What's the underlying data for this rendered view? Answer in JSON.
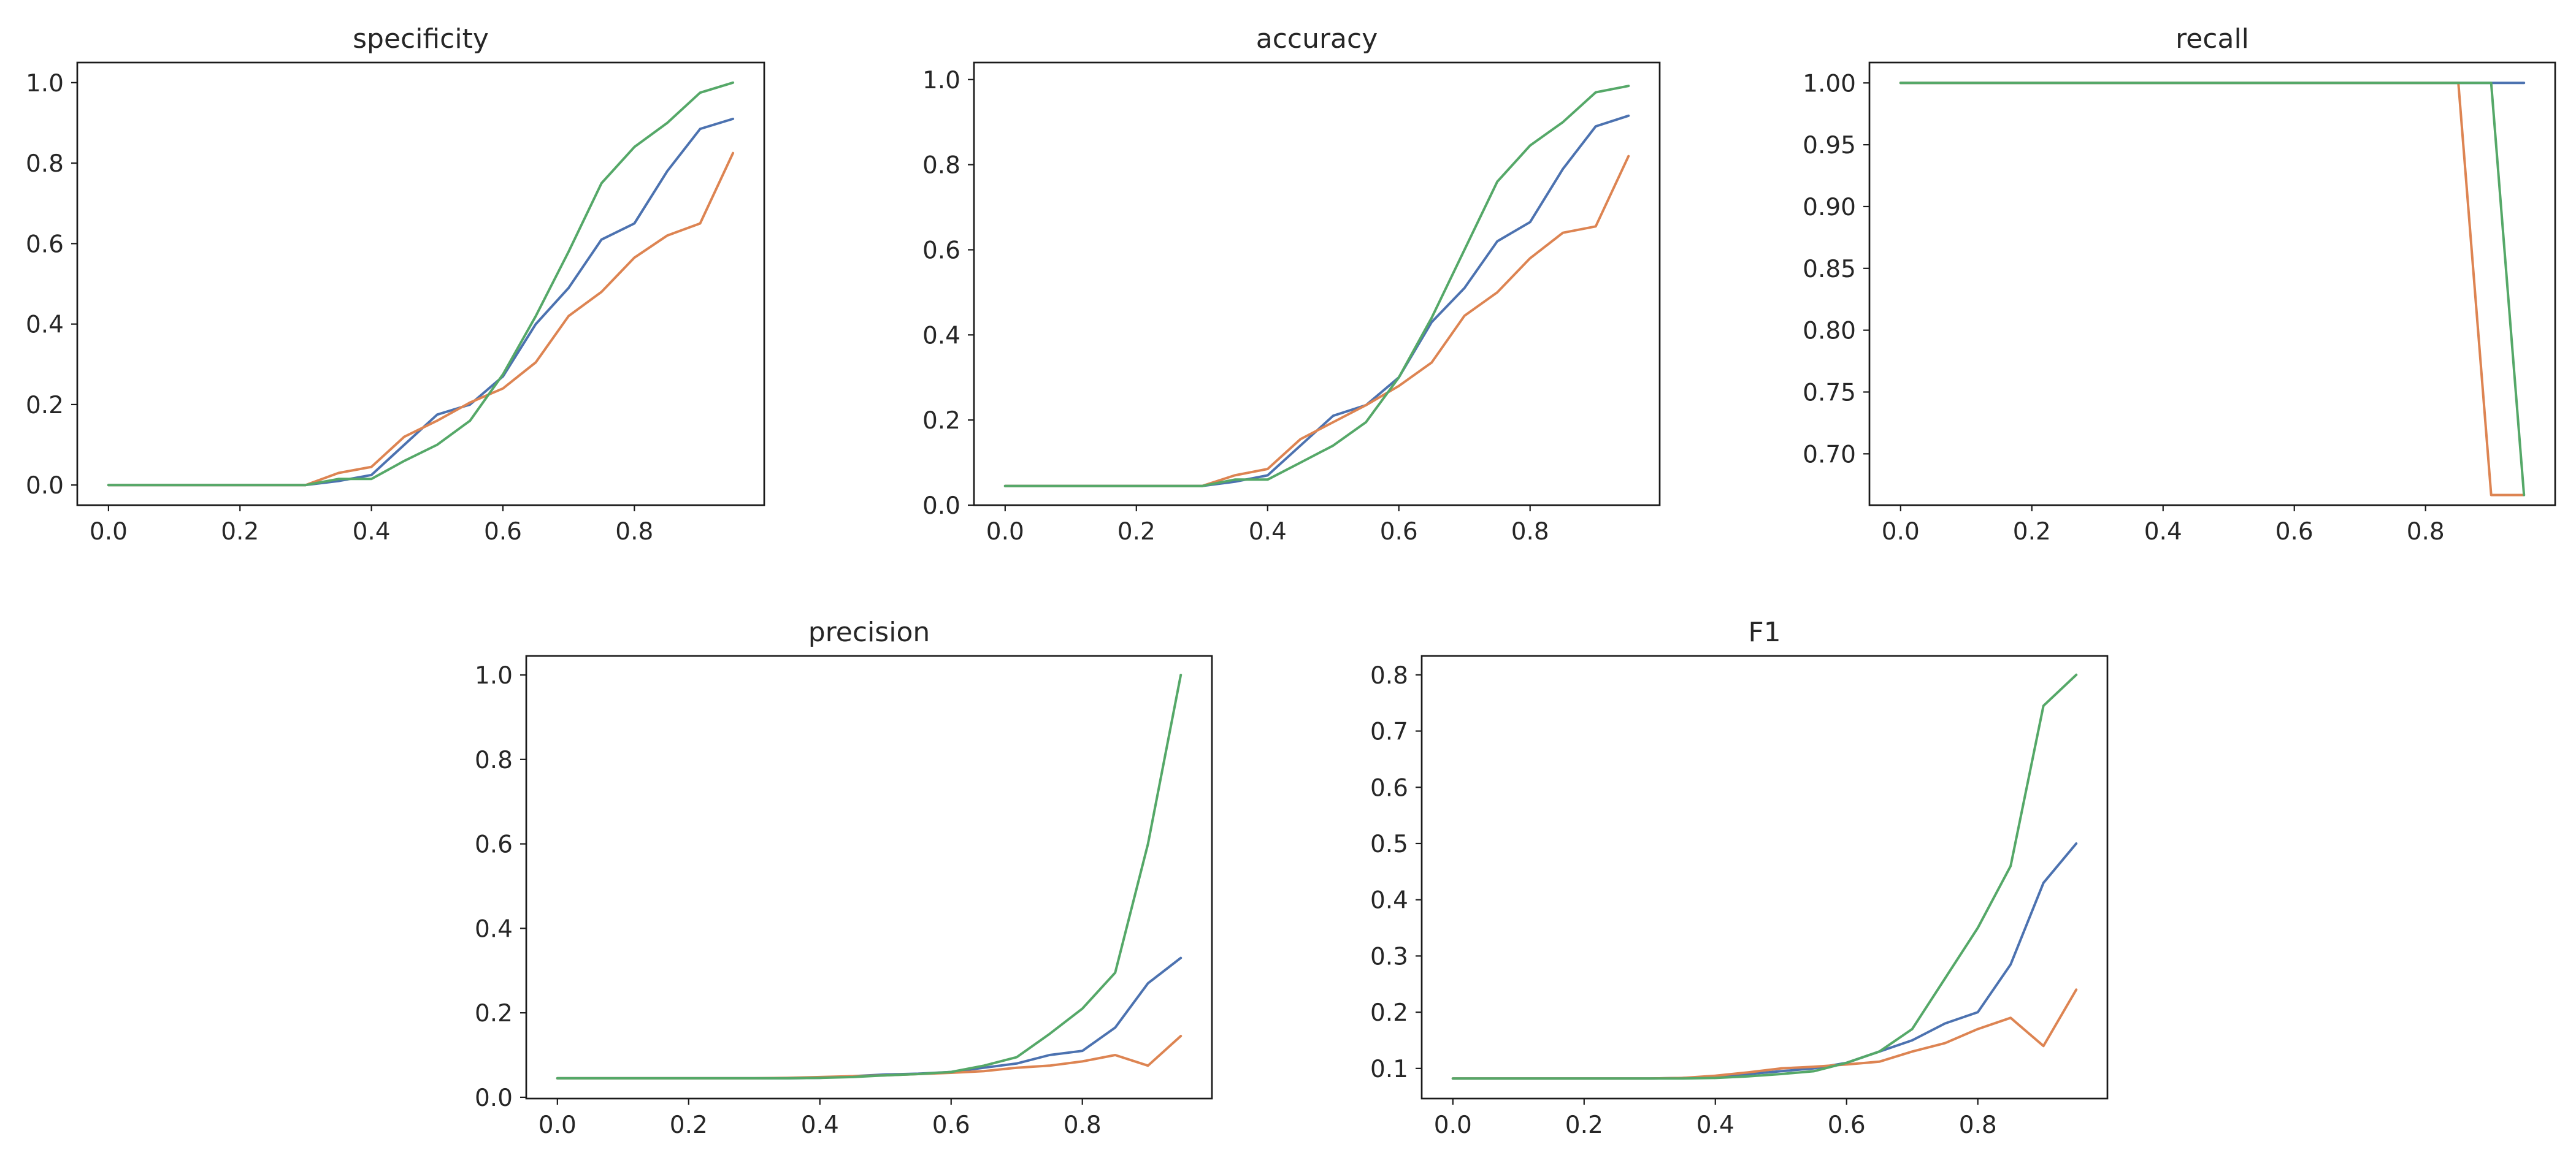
{
  "colors": {
    "blue": "#4c72b0",
    "orange": "#dd8452",
    "green": "#55a868",
    "text": "#262626",
    "frame": "#1a1a1a"
  },
  "chart_data": [
    {
      "type": "line",
      "title": "specificity",
      "xlabel": "",
      "ylabel": "",
      "xlim": [
        -0.0475,
        0.9975
      ],
      "ylim": [
        -0.05,
        1.05
      ],
      "xticks": [
        "0.0",
        "0.2",
        "0.4",
        "0.6",
        "0.8"
      ],
      "yticks": [
        "0.0",
        "0.2",
        "0.4",
        "0.6",
        "0.8",
        "1.0"
      ],
      "x": [
        0.0,
        0.05,
        0.1,
        0.15,
        0.2,
        0.25,
        0.3,
        0.35,
        0.4,
        0.45,
        0.5,
        0.55,
        0.6,
        0.65,
        0.7,
        0.75,
        0.8,
        0.85,
        0.9,
        0.95
      ],
      "series": [
        {
          "name": "blue",
          "color": "#4c72b0",
          "values": [
            0,
            0,
            0,
            0,
            0,
            0,
            0,
            0.01,
            0.025,
            0.1,
            0.175,
            0.2,
            0.27,
            0.4,
            0.49,
            0.61,
            0.65,
            0.78,
            0.885,
            0.91
          ]
        },
        {
          "name": "orange",
          "color": "#dd8452",
          "values": [
            0,
            0,
            0,
            0,
            0,
            0,
            0,
            0.03,
            0.045,
            0.12,
            0.16,
            0.205,
            0.24,
            0.305,
            0.42,
            0.48,
            0.565,
            0.62,
            0.65,
            0.825
          ]
        },
        {
          "name": "green",
          "color": "#55a868",
          "values": [
            0,
            0,
            0,
            0,
            0,
            0,
            0,
            0.015,
            0.015,
            0.06,
            0.1,
            0.16,
            0.275,
            0.42,
            0.58,
            0.75,
            0.84,
            0.9,
            0.975,
            1.0
          ]
        }
      ]
    },
    {
      "type": "line",
      "title": "accuracy",
      "xlabel": "",
      "ylabel": "",
      "xlim": [
        -0.0475,
        0.9975
      ],
      "ylim": [
        0.0,
        1.04
      ],
      "xticks": [
        "0.0",
        "0.2",
        "0.4",
        "0.6",
        "0.8"
      ],
      "yticks": [
        "0.0",
        "0.2",
        "0.4",
        "0.6",
        "0.8",
        "1.0"
      ],
      "x": [
        0.0,
        0.05,
        0.1,
        0.15,
        0.2,
        0.25,
        0.3,
        0.35,
        0.4,
        0.45,
        0.5,
        0.55,
        0.6,
        0.65,
        0.7,
        0.75,
        0.8,
        0.85,
        0.9,
        0.95
      ],
      "series": [
        {
          "name": "blue",
          "color": "#4c72b0",
          "values": [
            0.045,
            0.045,
            0.045,
            0.045,
            0.045,
            0.045,
            0.045,
            0.055,
            0.07,
            0.14,
            0.21,
            0.235,
            0.3,
            0.43,
            0.51,
            0.62,
            0.665,
            0.79,
            0.89,
            0.915
          ]
        },
        {
          "name": "orange",
          "color": "#dd8452",
          "values": [
            0.045,
            0.045,
            0.045,
            0.045,
            0.045,
            0.045,
            0.045,
            0.07,
            0.085,
            0.155,
            0.195,
            0.235,
            0.28,
            0.335,
            0.445,
            0.5,
            0.58,
            0.64,
            0.655,
            0.82
          ]
        },
        {
          "name": "green",
          "color": "#55a868",
          "values": [
            0.045,
            0.045,
            0.045,
            0.045,
            0.045,
            0.045,
            0.045,
            0.06,
            0.06,
            0.1,
            0.14,
            0.195,
            0.3,
            0.44,
            0.6,
            0.76,
            0.845,
            0.9,
            0.97,
            0.985
          ]
        }
      ]
    },
    {
      "type": "line",
      "title": "recall",
      "xlabel": "",
      "ylabel": "",
      "xlim": [
        -0.0475,
        0.9975
      ],
      "ylim": [
        0.6585,
        1.0165
      ],
      "xticks": [
        "0.0",
        "0.2",
        "0.4",
        "0.6",
        "0.8"
      ],
      "yticks": [
        "0.70",
        "0.75",
        "0.80",
        "0.85",
        "0.90",
        "0.95",
        "1.00"
      ],
      "x": [
        0.0,
        0.05,
        0.1,
        0.15,
        0.2,
        0.25,
        0.3,
        0.35,
        0.4,
        0.45,
        0.5,
        0.55,
        0.6,
        0.65,
        0.7,
        0.75,
        0.8,
        0.85,
        0.9,
        0.95
      ],
      "series": [
        {
          "name": "blue",
          "color": "#4c72b0",
          "values": [
            1,
            1,
            1,
            1,
            1,
            1,
            1,
            1,
            1,
            1,
            1,
            1,
            1,
            1,
            1,
            1,
            1,
            1,
            1,
            1
          ]
        },
        {
          "name": "orange",
          "color": "#dd8452",
          "values": [
            1,
            1,
            1,
            1,
            1,
            1,
            1,
            1,
            1,
            1,
            1,
            1,
            1,
            1,
            1,
            1,
            1,
            1,
            0.6667,
            0.6667
          ]
        },
        {
          "name": "green",
          "color": "#55a868",
          "values": [
            1,
            1,
            1,
            1,
            1,
            1,
            1,
            1,
            1,
            1,
            1,
            1,
            1,
            1,
            1,
            1,
            1,
            1,
            1,
            0.6667
          ]
        }
      ]
    },
    {
      "type": "line",
      "title": "precision",
      "xlabel": "",
      "ylabel": "",
      "xlim": [
        -0.0475,
        0.9975
      ],
      "ylim": [
        -0.003,
        1.045
      ],
      "xticks": [
        "0.0",
        "0.2",
        "0.4",
        "0.6",
        "0.8"
      ],
      "yticks": [
        "0.0",
        "0.2",
        "0.4",
        "0.6",
        "0.8",
        "1.0"
      ],
      "x": [
        0.0,
        0.05,
        0.1,
        0.15,
        0.2,
        0.25,
        0.3,
        0.35,
        0.4,
        0.45,
        0.5,
        0.55,
        0.6,
        0.65,
        0.7,
        0.75,
        0.8,
        0.85,
        0.9,
        0.95
      ],
      "series": [
        {
          "name": "blue",
          "color": "#4c72b0",
          "values": [
            0.045,
            0.045,
            0.045,
            0.045,
            0.045,
            0.045,
            0.045,
            0.045,
            0.046,
            0.05,
            0.054,
            0.056,
            0.06,
            0.07,
            0.08,
            0.1,
            0.11,
            0.165,
            0.27,
            0.33
          ]
        },
        {
          "name": "orange",
          "color": "#dd8452",
          "values": [
            0.045,
            0.045,
            0.045,
            0.045,
            0.045,
            0.045,
            0.045,
            0.046,
            0.048,
            0.05,
            0.052,
            0.055,
            0.058,
            0.062,
            0.07,
            0.075,
            0.085,
            0.1,
            0.075,
            0.145
          ]
        },
        {
          "name": "green",
          "color": "#55a868",
          "values": [
            0.045,
            0.045,
            0.045,
            0.045,
            0.045,
            0.045,
            0.045,
            0.045,
            0.046,
            0.048,
            0.052,
            0.055,
            0.06,
            0.075,
            0.095,
            0.15,
            0.21,
            0.295,
            0.6,
            1.0
          ]
        }
      ]
    },
    {
      "type": "line",
      "title": "F1",
      "xlabel": "",
      "ylabel": "",
      "xlim": [
        -0.0475,
        0.9975
      ],
      "ylim": [
        0.0464,
        0.8336
      ],
      "xticks": [
        "0.0",
        "0.2",
        "0.4",
        "0.6",
        "0.8"
      ],
      "yticks": [
        "0.1",
        "0.2",
        "0.3",
        "0.4",
        "0.5",
        "0.6",
        "0.7",
        "0.8"
      ],
      "x": [
        0.0,
        0.05,
        0.1,
        0.15,
        0.2,
        0.25,
        0.3,
        0.35,
        0.4,
        0.45,
        0.5,
        0.55,
        0.6,
        0.65,
        0.7,
        0.75,
        0.8,
        0.85,
        0.9,
        0.95
      ],
      "series": [
        {
          "name": "blue",
          "color": "#4c72b0",
          "values": [
            0.082,
            0.082,
            0.082,
            0.082,
            0.082,
            0.082,
            0.082,
            0.083,
            0.085,
            0.09,
            0.095,
            0.1,
            0.11,
            0.13,
            0.15,
            0.18,
            0.2,
            0.285,
            0.43,
            0.5
          ]
        },
        {
          "name": "orange",
          "color": "#dd8452",
          "values": [
            0.082,
            0.082,
            0.082,
            0.082,
            0.082,
            0.082,
            0.082,
            0.083,
            0.087,
            0.093,
            0.1,
            0.103,
            0.107,
            0.112,
            0.13,
            0.145,
            0.17,
            0.19,
            0.14,
            0.24
          ]
        },
        {
          "name": "green",
          "color": "#55a868",
          "values": [
            0.082,
            0.082,
            0.082,
            0.082,
            0.082,
            0.082,
            0.082,
            0.082,
            0.083,
            0.086,
            0.09,
            0.095,
            0.11,
            0.13,
            0.17,
            0.26,
            0.35,
            0.46,
            0.745,
            0.8
          ]
        }
      ]
    }
  ]
}
